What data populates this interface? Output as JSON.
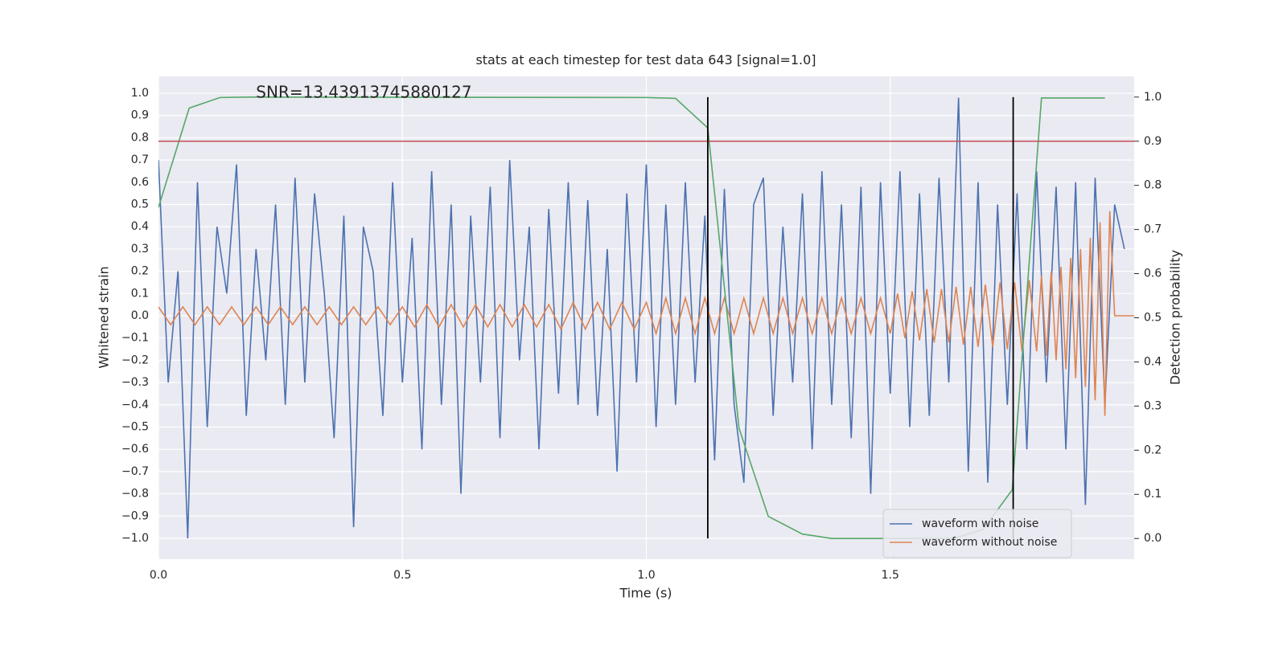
{
  "chart_data": {
    "type": "line",
    "title": "stats at each timestep for test data 643 [signal=1.0]",
    "xlabel": "Time (s)",
    "ylabel": "Whitened strain",
    "y2label": "Detection probability",
    "xlim": [
      0,
      2.0
    ],
    "ylim": [
      -1.094,
      1.076
    ],
    "y2lim": [
      -0.047,
      1.047
    ],
    "xticks": [
      {
        "value": 0,
        "label": "0.0"
      },
      {
        "value": 0.5,
        "label": "0.5"
      },
      {
        "value": 1.0,
        "label": "1.0"
      },
      {
        "value": 1.5,
        "label": "1.5"
      }
    ],
    "yticks": [
      {
        "value": -1.0,
        "label": "−1.0"
      },
      {
        "value": -0.9,
        "label": "−0.9"
      },
      {
        "value": -0.8,
        "label": "−0.8"
      },
      {
        "value": -0.7,
        "label": "−0.7"
      },
      {
        "value": -0.6,
        "label": "−0.6"
      },
      {
        "value": -0.5,
        "label": "−0.5"
      },
      {
        "value": -0.4,
        "label": "−0.4"
      },
      {
        "value": -0.3,
        "label": "−0.3"
      },
      {
        "value": -0.2,
        "label": "−0.2"
      },
      {
        "value": -0.1,
        "label": "−0.1"
      },
      {
        "value": 0,
        "label": "0.0"
      },
      {
        "value": 0.1,
        "label": "0.1"
      },
      {
        "value": 0.2,
        "label": "0.2"
      },
      {
        "value": 0.3,
        "label": "0.3"
      },
      {
        "value": 0.4,
        "label": "0.4"
      },
      {
        "value": 0.5,
        "label": "0.5"
      },
      {
        "value": 0.6,
        "label": "0.6"
      },
      {
        "value": 0.7,
        "label": "0.7"
      },
      {
        "value": 0.8,
        "label": "0.8"
      },
      {
        "value": 0.9,
        "label": "0.9"
      },
      {
        "value": 1.0,
        "label": "1.0"
      }
    ],
    "y2ticks": [
      {
        "value": 0,
        "label": "0.0"
      },
      {
        "value": 0.1,
        "label": "0.1"
      },
      {
        "value": 0.2,
        "label": "0.2"
      },
      {
        "value": 0.3,
        "label": "0.3"
      },
      {
        "value": 0.4,
        "label": "0.4"
      },
      {
        "value": 0.5,
        "label": "0.5"
      },
      {
        "value": 0.6,
        "label": "0.6"
      },
      {
        "value": 0.7,
        "label": "0.7"
      },
      {
        "value": 0.8,
        "label": "0.8"
      },
      {
        "value": 0.9,
        "label": "0.9"
      },
      {
        "value": 1.0,
        "label": "1.0"
      }
    ],
    "grid": true,
    "legend": "lower right",
    "series": [
      {
        "name": "waveform with noise",
        "color": "#4c72b0",
        "legend": true,
        "x": [
          0,
          0.02,
          0.04,
          0.06,
          0.08,
          0.1,
          0.12,
          0.14,
          0.16,
          0.18,
          0.2,
          0.22,
          0.24,
          0.26,
          0.28,
          0.3,
          0.32,
          0.34,
          0.36,
          0.38,
          0.4,
          0.42,
          0.44,
          0.46,
          0.48,
          0.5,
          0.52,
          0.54,
          0.56,
          0.58,
          0.6,
          0.62,
          0.64,
          0.66,
          0.68,
          0.7,
          0.72,
          0.74,
          0.76,
          0.78,
          0.8,
          0.82,
          0.84,
          0.86,
          0.88,
          0.9,
          0.92,
          0.94,
          0.96,
          0.98,
          1.0,
          1.02,
          1.04,
          1.06,
          1.08,
          1.1,
          1.12,
          1.14,
          1.16,
          1.18,
          1.2,
          1.22,
          1.24,
          1.26,
          1.28,
          1.3,
          1.32,
          1.34,
          1.36,
          1.38,
          1.4,
          1.42,
          1.44,
          1.46,
          1.48,
          1.5,
          1.52,
          1.54,
          1.56,
          1.58,
          1.6,
          1.62,
          1.64,
          1.66,
          1.68,
          1.7,
          1.72,
          1.74,
          1.76,
          1.78,
          1.8,
          1.82,
          1.84,
          1.86,
          1.88,
          1.9,
          1.92,
          1.94,
          1.96,
          1.98
        ],
        "values": [
          0.7,
          -0.3,
          0.2,
          -1.0,
          0.6,
          -0.5,
          0.4,
          0.1,
          0.68,
          -0.45,
          0.3,
          -0.2,
          0.5,
          -0.4,
          0.62,
          -0.3,
          0.55,
          0.1,
          -0.55,
          0.45,
          -0.95,
          0.4,
          0.2,
          -0.45,
          0.6,
          -0.3,
          0.35,
          -0.6,
          0.65,
          -0.4,
          0.5,
          -0.8,
          0.45,
          -0.3,
          0.58,
          -0.55,
          0.7,
          -0.2,
          0.4,
          -0.6,
          0.48,
          -0.35,
          0.6,
          -0.4,
          0.52,
          -0.45,
          0.3,
          -0.7,
          0.55,
          -0.3,
          0.68,
          -0.5,
          0.5,
          -0.4,
          0.6,
          -0.3,
          0.45,
          -0.65,
          0.57,
          -0.4,
          -0.75,
          0.5,
          0.62,
          -0.45,
          0.4,
          -0.3,
          0.55,
          -0.6,
          0.65,
          -0.4,
          0.5,
          -0.55,
          0.58,
          -0.8,
          0.6,
          -0.35,
          0.65,
          -0.5,
          0.55,
          -0.45,
          0.62,
          -0.3,
          0.98,
          -0.7,
          0.6,
          -0.75,
          0.5,
          -0.4,
          0.55,
          -0.6,
          0.65,
          -0.3,
          0.58,
          -0.6,
          0.6,
          -0.85,
          0.62,
          -0.4,
          0.5,
          0.3
        ]
      },
      {
        "name": "waveform without noise",
        "color": "#dd8452",
        "legend": true,
        "x": [
          0,
          0.025,
          0.05,
          0.075,
          0.1,
          0.125,
          0.15,
          0.175,
          0.2,
          0.225,
          0.25,
          0.275,
          0.3,
          0.325,
          0.35,
          0.375,
          0.4,
          0.425,
          0.45,
          0.475,
          0.5,
          0.525,
          0.55,
          0.575,
          0.6,
          0.625,
          0.65,
          0.675,
          0.7,
          0.725,
          0.75,
          0.775,
          0.8,
          0.825,
          0.85,
          0.875,
          0.9,
          0.925,
          0.95,
          0.975,
          1.0,
          1.02,
          1.04,
          1.06,
          1.08,
          1.1,
          1.12,
          1.14,
          1.16,
          1.18,
          1.2,
          1.22,
          1.24,
          1.26,
          1.28,
          1.3,
          1.32,
          1.34,
          1.36,
          1.38,
          1.4,
          1.42,
          1.44,
          1.46,
          1.48,
          1.5,
          1.515,
          1.53,
          1.545,
          1.56,
          1.575,
          1.59,
          1.605,
          1.62,
          1.635,
          1.65,
          1.665,
          1.68,
          1.695,
          1.71,
          1.725,
          1.74,
          1.755,
          1.77,
          1.785,
          1.8,
          1.81,
          1.82,
          1.83,
          1.84,
          1.85,
          1.86,
          1.87,
          1.88,
          1.89,
          1.9,
          1.91,
          1.92,
          1.93,
          1.94,
          1.95,
          1.96,
          2.0
        ],
        "values": [
          0.04,
          -0.04,
          0.04,
          -0.04,
          0.04,
          -0.04,
          0.04,
          -0.04,
          0.04,
          -0.04,
          0.04,
          -0.04,
          0.04,
          -0.04,
          0.04,
          -0.04,
          0.04,
          -0.04,
          0.04,
          -0.04,
          0.04,
          -0.05,
          0.05,
          -0.05,
          0.05,
          -0.05,
          0.05,
          -0.05,
          0.05,
          -0.05,
          0.05,
          -0.05,
          0.05,
          -0.06,
          0.06,
          -0.06,
          0.06,
          -0.06,
          0.06,
          -0.06,
          0.06,
          -0.08,
          0.08,
          -0.08,
          0.08,
          -0.08,
          0.08,
          -0.08,
          0.08,
          -0.08,
          0.08,
          -0.08,
          0.08,
          -0.08,
          0.08,
          -0.08,
          0.08,
          -0.08,
          0.08,
          -0.08,
          0.08,
          -0.08,
          0.08,
          -0.08,
          0.08,
          -0.08,
          0.1,
          -0.1,
          0.11,
          -0.11,
          0.12,
          -0.12,
          0.12,
          -0.12,
          0.13,
          -0.13,
          0.13,
          -0.14,
          0.14,
          -0.14,
          0.15,
          -0.15,
          0.15,
          -0.16,
          0.16,
          -0.16,
          0.18,
          -0.18,
          0.2,
          -0.2,
          0.22,
          -0.24,
          0.26,
          -0.28,
          0.3,
          -0.32,
          0.35,
          -0.38,
          0.42,
          -0.45,
          0.47,
          0,
          0
        ]
      },
      {
        "color": "#55a868",
        "axis": "y2",
        "legend": false,
        "x": [
          0,
          0.063,
          0.126,
          0.19,
          1.0,
          1.06,
          1.126,
          1.19,
          1.25,
          1.32,
          1.38,
          1.5,
          1.63,
          1.69,
          1.75,
          1.81,
          1.94
        ],
        "values": [
          0.75,
          0.975,
          0.999,
          1.0,
          0.999,
          0.997,
          0.93,
          0.25,
          0.05,
          0.01,
          0.0,
          0.0,
          0.0,
          0.02,
          0.11,
          0.998,
          0.998
        ]
      }
    ],
    "hlines": [
      {
        "y": 0.9,
        "axis": "y2",
        "color": "#c44e52"
      }
    ],
    "vlines": [
      {
        "x": 1.126,
        "ymin": 0,
        "ymax": 1.0,
        "axis": "y2",
        "color": "#000000"
      },
      {
        "x": 1.752,
        "ymin": 0,
        "ymax": 1.0,
        "axis": "y2",
        "color": "#000000"
      }
    ],
    "annotation": {
      "text": "SNR=13.43913745880127",
      "x": 0.2,
      "y": 1.0
    }
  }
}
